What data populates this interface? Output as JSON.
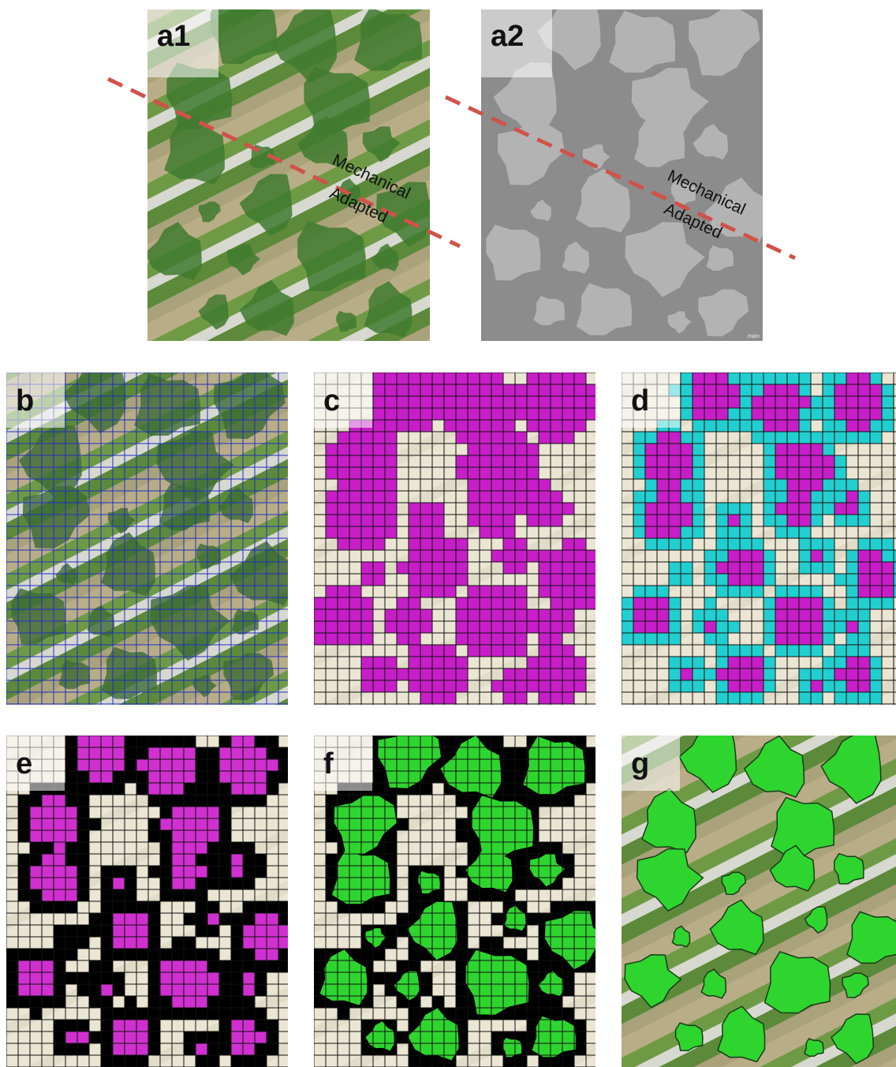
{
  "panels": [
    {
      "label": "a1",
      "annotations": [
        "Mechanical",
        "Adapted"
      ]
    },
    {
      "label": "a2",
      "annotations": [
        "Mechanical",
        "Adapted"
      ],
      "corner_text": "main"
    },
    {
      "label": "b"
    },
    {
      "label": "c"
    },
    {
      "label": "d"
    },
    {
      "label": "e"
    },
    {
      "label": "f"
    },
    {
      "label": "g"
    }
  ]
}
